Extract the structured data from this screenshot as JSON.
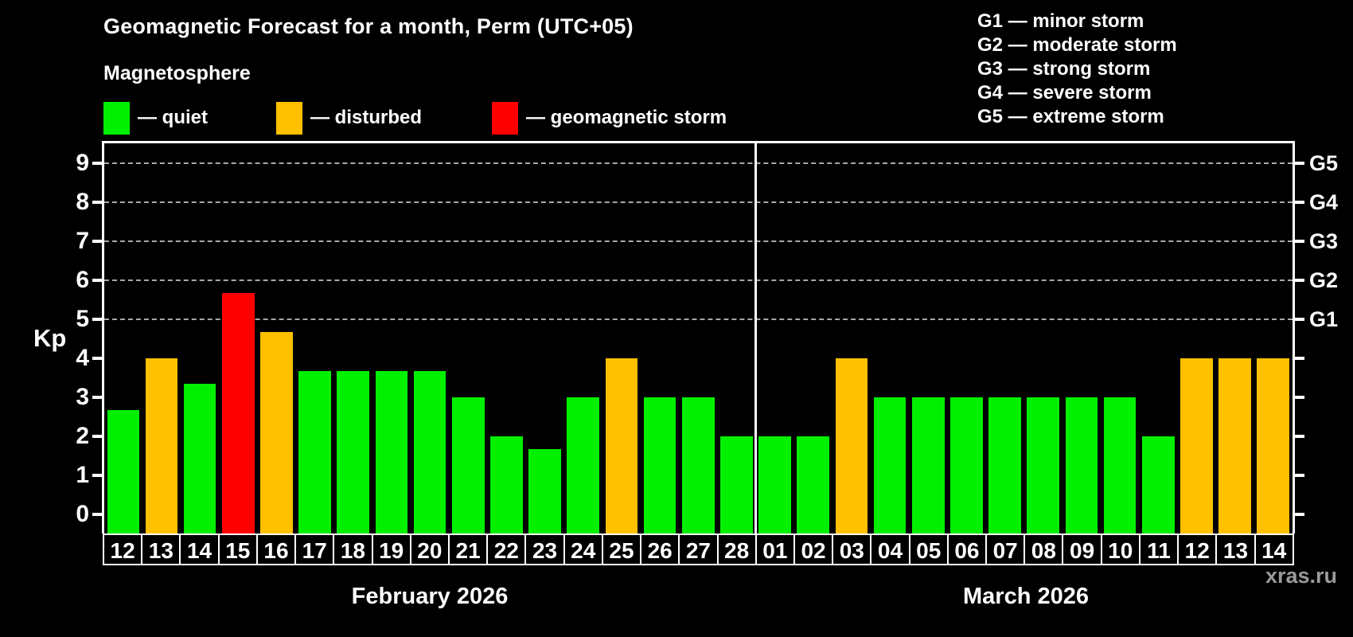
{
  "title": "Geomagnetic Forecast for a month, Perm (UTC+05)",
  "subtitle": "Magnetosphere",
  "legend": {
    "quiet_label": "— quiet",
    "disturbed_label": "— disturbed",
    "storm_label": "— geomagnetic storm"
  },
  "g_legend": [
    {
      "label": "G1 — minor storm"
    },
    {
      "label": "G2 — moderate storm"
    },
    {
      "label": "G3 — strong storm"
    },
    {
      "label": "G4 — severe storm"
    },
    {
      "label": "G5 — extreme storm"
    }
  ],
  "watermark": "xras.ru",
  "colors": {
    "quiet": "#00f000",
    "disturbed": "#ffc000",
    "storm": "#ff0000",
    "axis": "#ffffff",
    "grid": "#a8a8a8",
    "watermark": "#9a9a9a",
    "background": "#000000"
  },
  "chart_data": {
    "type": "bar",
    "title": "Geomagnetic Forecast for a month, Perm (UTC+05)",
    "ylabel": "Kp",
    "ylim": [
      -0.5,
      9.5
    ],
    "yticks": [
      0,
      1,
      2,
      3,
      4,
      5,
      6,
      7,
      8,
      9
    ],
    "gridlines": [
      5,
      6,
      7,
      8,
      9
    ],
    "grid": "horizontal dashed lines at G-storm levels only",
    "legend_position": "top-left and top-right",
    "right_axis": [
      {
        "label": "G1",
        "kp": 5
      },
      {
        "label": "G2",
        "kp": 6
      },
      {
        "label": "G3",
        "kp": 7
      },
      {
        "label": "G4",
        "kp": 8
      },
      {
        "label": "G5",
        "kp": 9
      }
    ],
    "months": [
      {
        "label": "February 2026",
        "days": [
          "12",
          "13",
          "14",
          "15",
          "16",
          "17",
          "18",
          "19",
          "20",
          "21",
          "22",
          "23",
          "24",
          "25",
          "26",
          "27",
          "28"
        ],
        "values": [
          2.67,
          4.0,
          3.33,
          5.67,
          4.67,
          3.67,
          3.67,
          3.67,
          3.67,
          3.0,
          2.0,
          1.67,
          3.0,
          4.0,
          3.0,
          3.0,
          2.0
        ],
        "status": [
          "quiet",
          "disturbed",
          "quiet",
          "storm",
          "disturbed",
          "quiet",
          "quiet",
          "quiet",
          "quiet",
          "quiet",
          "quiet",
          "quiet",
          "quiet",
          "disturbed",
          "quiet",
          "quiet",
          "quiet"
        ]
      },
      {
        "label": "March 2026",
        "days": [
          "01",
          "02",
          "03",
          "04",
          "05",
          "06",
          "07",
          "08",
          "09",
          "10",
          "11",
          "12",
          "13",
          "14"
        ],
        "values": [
          2.0,
          2.0,
          4.0,
          3.0,
          3.0,
          3.0,
          3.0,
          3.0,
          3.0,
          3.0,
          2.0,
          4.0,
          4.0,
          4.0
        ],
        "status": [
          "quiet",
          "quiet",
          "disturbed",
          "quiet",
          "quiet",
          "quiet",
          "quiet",
          "quiet",
          "quiet",
          "quiet",
          "quiet",
          "disturbed",
          "disturbed",
          "disturbed"
        ]
      }
    ]
  }
}
